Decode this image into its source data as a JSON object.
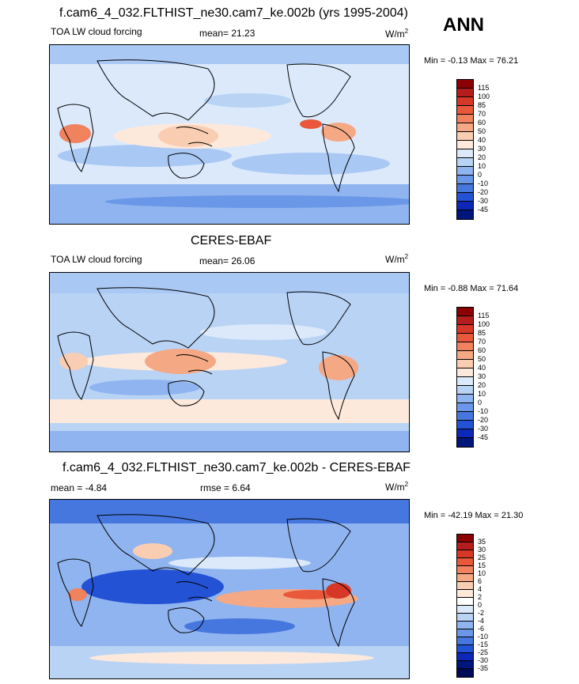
{
  "season": "ANN",
  "colors": {
    "land_outline": "#000000",
    "base_light": "#dbe9fb",
    "base_mid": "#a9c8f4",
    "warm": "#f6c1a5",
    "warmer": "#ef8a63",
    "hot": "#d73727",
    "cool": "#6f9be8",
    "cooler": "#3f6fe0",
    "coldest": "#1f3fcf"
  },
  "panels": [
    {
      "title": "f.cam6_4_032.FLTHIST_ne30.cam7_ke.002b (yrs 1995-2004)",
      "left_label": "TOA LW cloud forcing",
      "mid_label": "mean=  21.23",
      "units": "W/m",
      "units_sup": "2",
      "minmax": "Min =  -0.13 Max =  76.21",
      "colorbar_labels": [
        "115",
        "100",
        "85",
        "70",
        "60",
        "50",
        "40",
        "30",
        "20",
        "10",
        "0",
        "-10",
        "-20",
        "-30",
        "-45"
      ],
      "colorbar_colors": [
        "#8b0000",
        "#b51d1d",
        "#d73727",
        "#e9583a",
        "#f0825e",
        "#f5a884",
        "#f9cdb2",
        "#fde9dc",
        "#dbe9fb",
        "#b9d3f5",
        "#8fb4ef",
        "#6a97e7",
        "#4677de",
        "#2452d4",
        "#0b28b8",
        "#00167a"
      ]
    },
    {
      "title": "CERES-EBAF",
      "left_label": "TOA LW cloud forcing",
      "mid_label": "mean=  26.06",
      "units": "W/m",
      "units_sup": "2",
      "minmax": "Min =  -0.88 Max =  71.64",
      "colorbar_labels": [
        "115",
        "100",
        "85",
        "70",
        "60",
        "50",
        "40",
        "30",
        "20",
        "10",
        "0",
        "-10",
        "-20",
        "-30",
        "-45"
      ],
      "colorbar_colors": [
        "#8b0000",
        "#b51d1d",
        "#d73727",
        "#e9583a",
        "#f0825e",
        "#f5a884",
        "#f9cdb2",
        "#fde9dc",
        "#dbe9fb",
        "#b9d3f5",
        "#8fb4ef",
        "#6a97e7",
        "#4677de",
        "#2452d4",
        "#0b28b8",
        "#00167a"
      ]
    },
    {
      "title": "f.cam6_4_032.FLTHIST_ne30.cam7_ke.002b - CERES-EBAF",
      "left_label": "mean =  -4.84",
      "mid_label": "rmse =   6.64",
      "units": "W/m",
      "units_sup": "2",
      "minmax": "Min = -42.19 Max =  21.30",
      "colorbar_labels": [
        "35",
        "30",
        "25",
        "15",
        "10",
        "6",
        "4",
        "2",
        "0",
        "-2",
        "-4",
        "-6",
        "-10",
        "-15",
        "-25",
        "-30",
        "-35"
      ],
      "colorbar_colors": [
        "#8b0000",
        "#b51d1d",
        "#d73727",
        "#e9583a",
        "#f0825e",
        "#f5a884",
        "#f9cdb2",
        "#fde9dc",
        "#ffffff",
        "#dbe9fb",
        "#b9d3f5",
        "#8fb4ef",
        "#6a97e7",
        "#4677de",
        "#2452d4",
        "#0b28b8",
        "#00167a",
        "#000a55"
      ]
    }
  ]
}
